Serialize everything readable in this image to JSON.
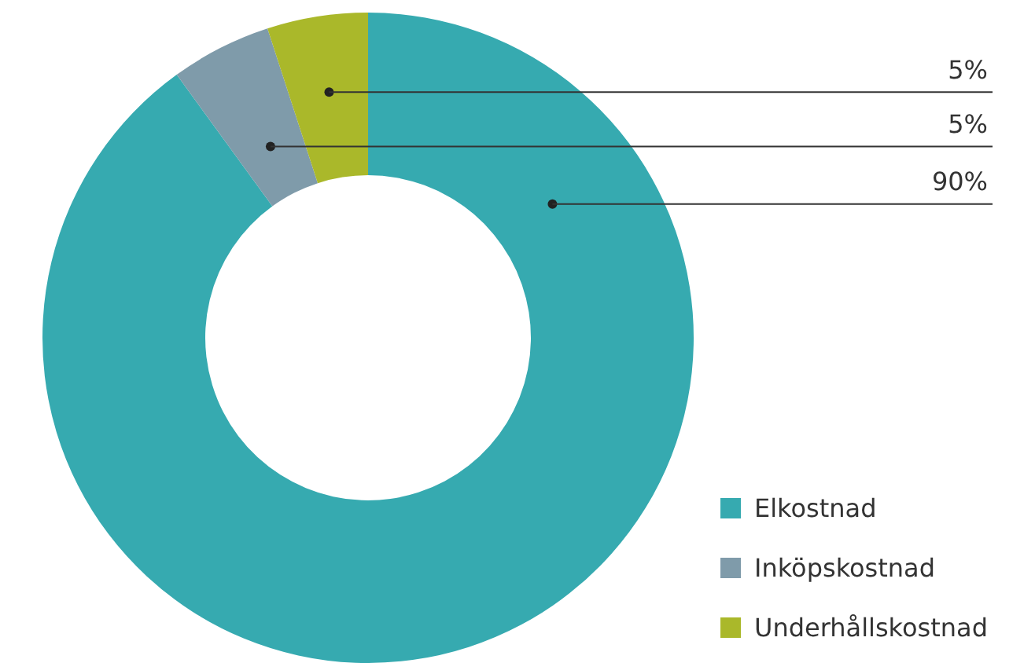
{
  "chart_data": {
    "type": "donut",
    "categories": [
      "Elkostnad",
      "Inköpskostnad",
      "Underhållskostnad"
    ],
    "values": [
      90,
      5,
      5
    ],
    "value_labels": [
      "90%",
      "5%",
      "5%"
    ],
    "colors": [
      "#36aab0",
      "#7f9baa",
      "#aab82a"
    ],
    "data_labels": true,
    "legend": "bottom right"
  }
}
